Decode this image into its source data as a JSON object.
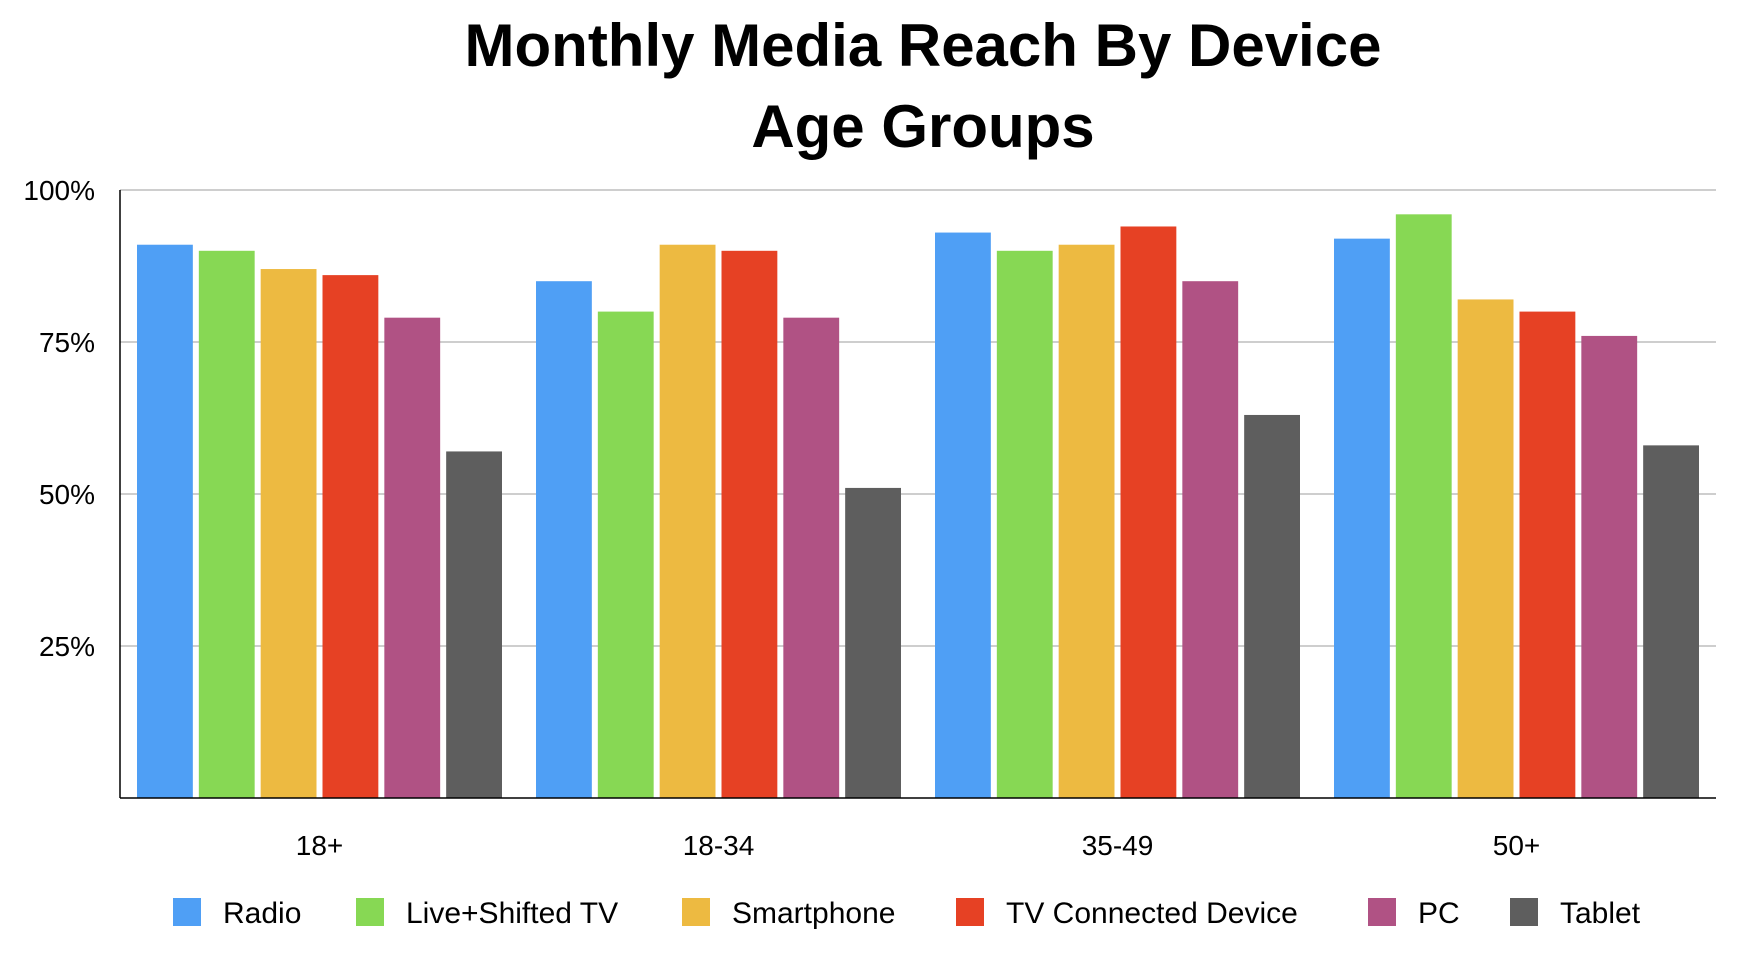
{
  "chart_data": {
    "type": "bar",
    "title": [
      "Monthly Media Reach By Device",
      "Age Groups"
    ],
    "xlabel": "",
    "ylabel": "",
    "ylim": [
      0,
      100
    ],
    "yticks": [
      25,
      50,
      75,
      100
    ],
    "ytick_labels": [
      "25%",
      "50%",
      "75%",
      "100%"
    ],
    "grid": true,
    "legend_position": "bottom",
    "categories": [
      "18+",
      "18-34",
      "35-49",
      "50+"
    ],
    "series": [
      {
        "name": "Radio",
        "color": "#4f9ff5",
        "values": [
          91,
          85,
          93,
          92
        ]
      },
      {
        "name": "Live+Shifted TV",
        "color": "#87d854",
        "values": [
          90,
          80,
          90,
          96
        ]
      },
      {
        "name": "Smartphone",
        "color": "#edba41",
        "values": [
          87,
          91,
          91,
          82
        ]
      },
      {
        "name": "TV Connected Device",
        "color": "#e64124",
        "values": [
          86,
          90,
          94,
          80
        ]
      },
      {
        "name": "PC",
        "color": "#b05284",
        "values": [
          79,
          79,
          85,
          76
        ]
      },
      {
        "name": "Tablet",
        "color": "#5e5e5e",
        "values": [
          57,
          51,
          63,
          58
        ]
      }
    ]
  }
}
